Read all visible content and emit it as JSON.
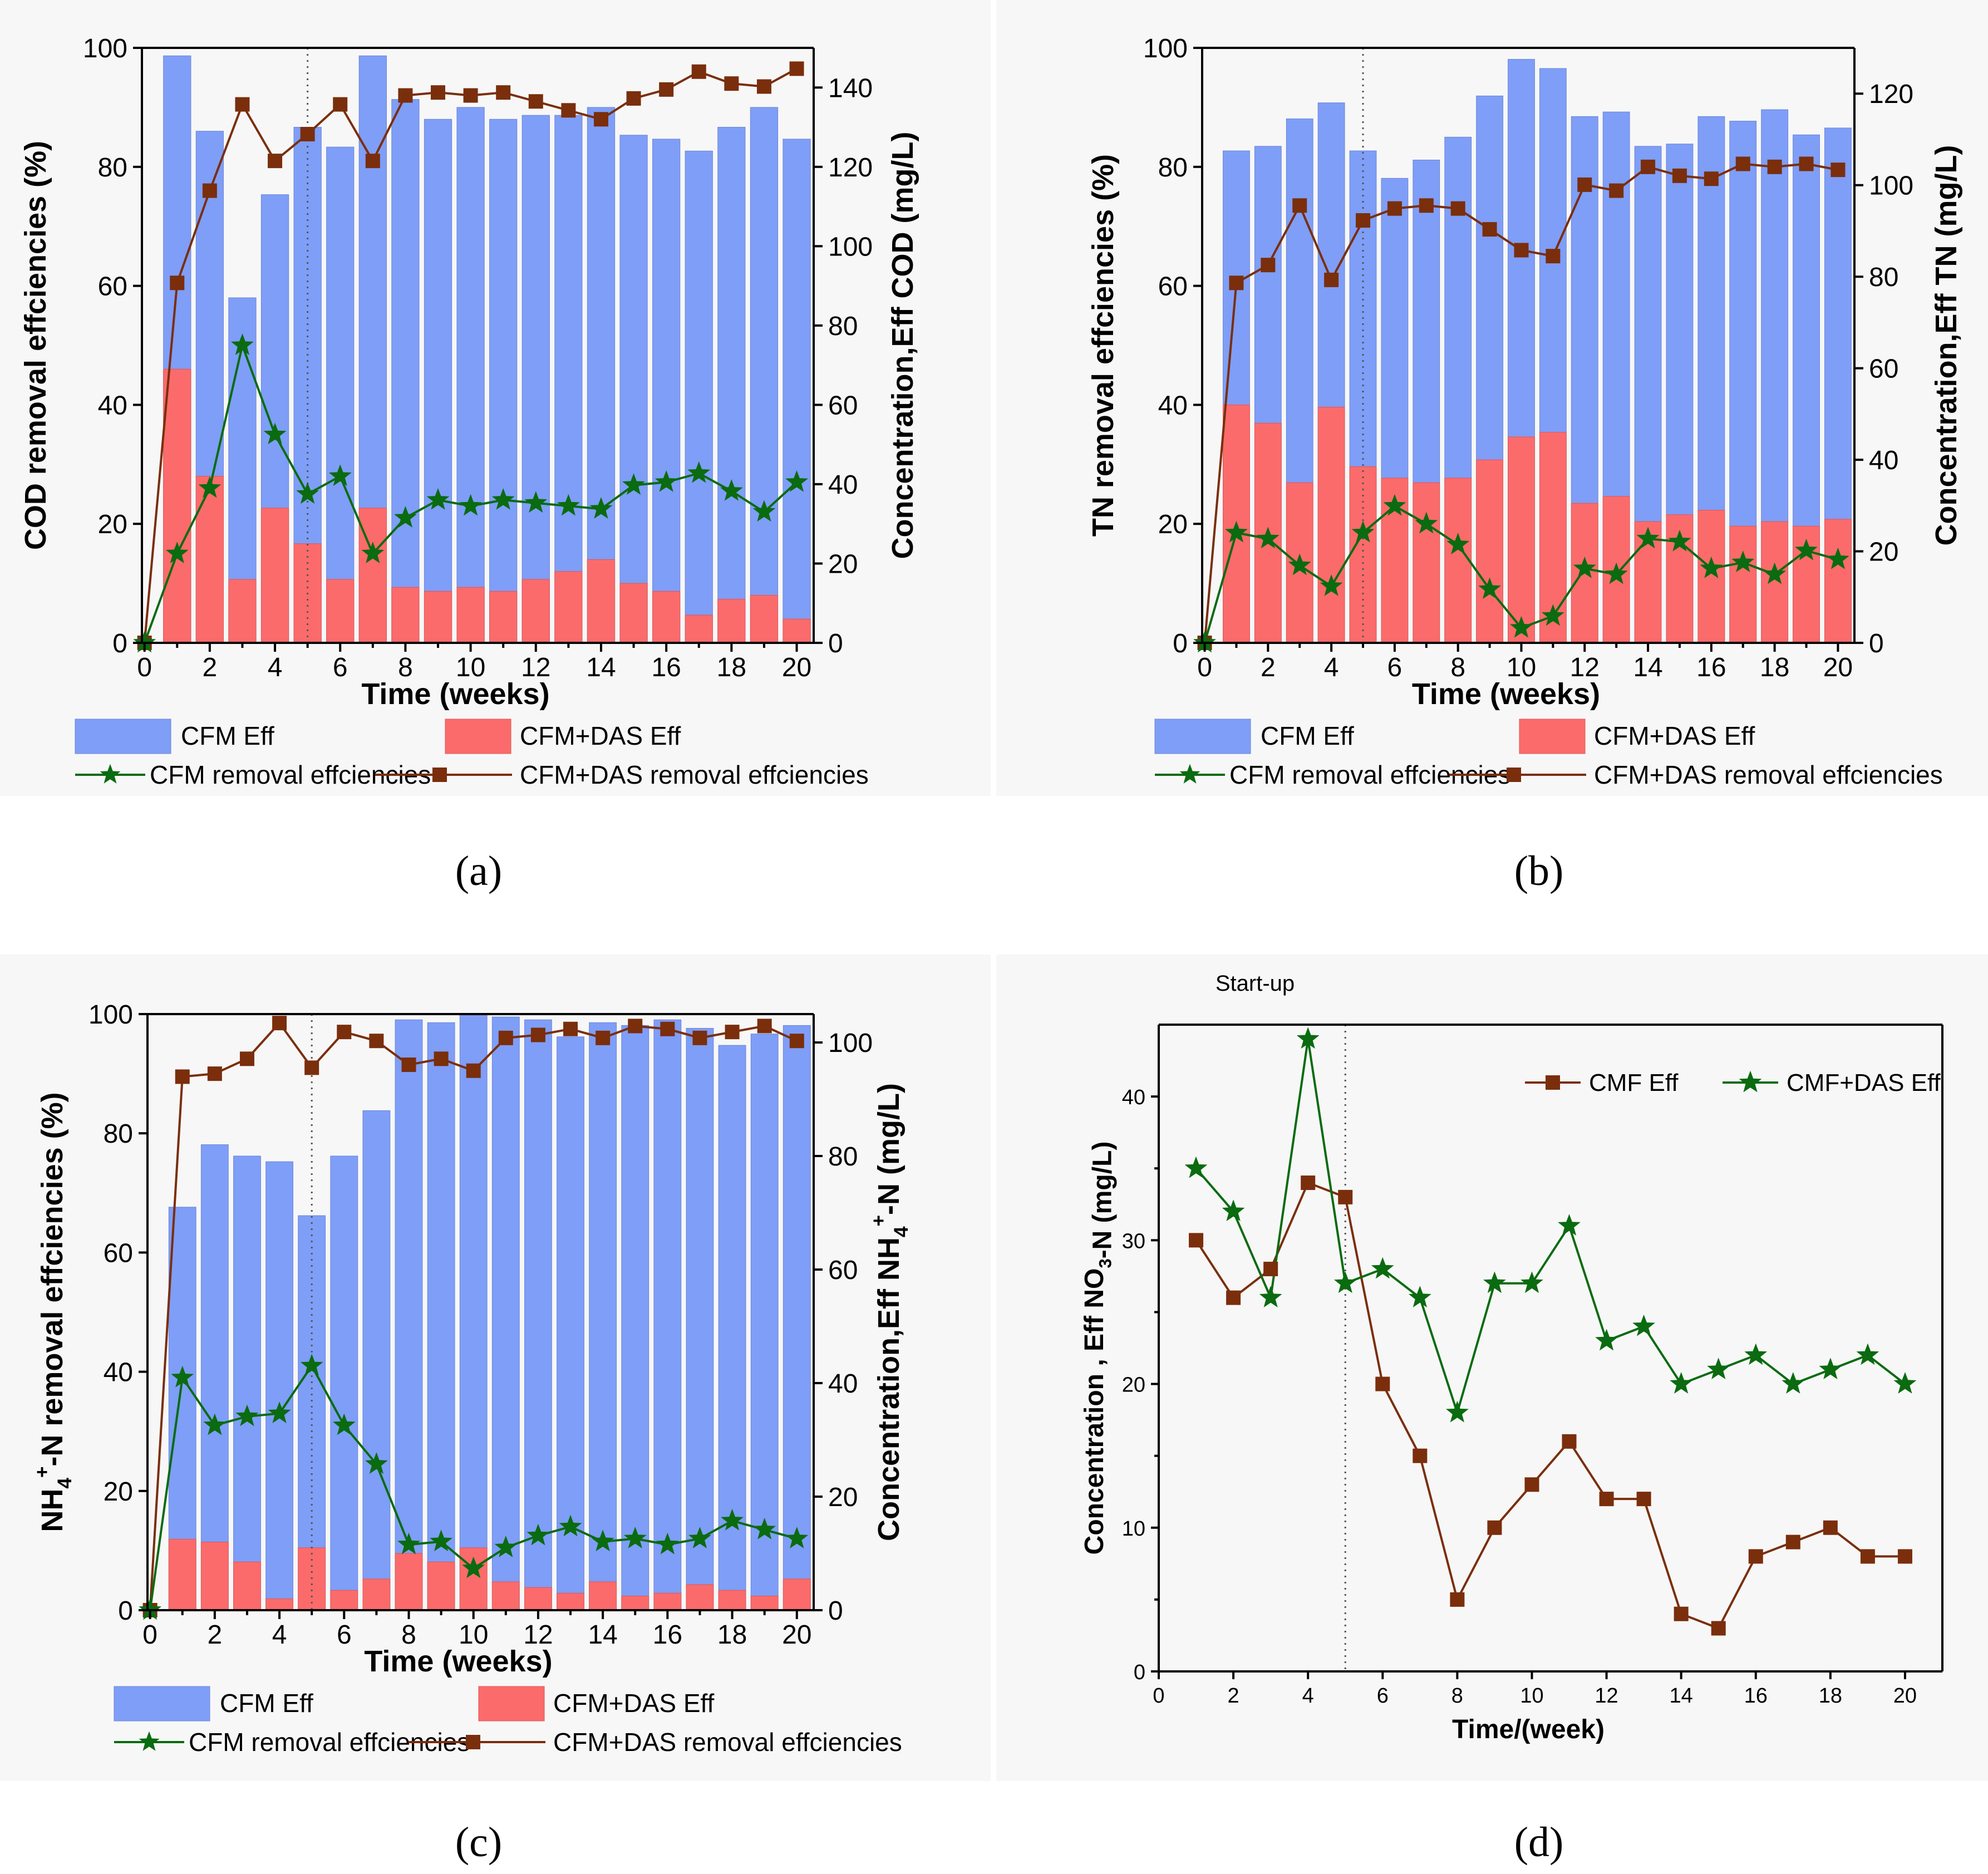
{
  "colors": {
    "cfm_bar": "#7f9ef7",
    "das_bar": "#fb6b6b",
    "cfm_line": "#0a6b10",
    "das_line": "#7a2e0c",
    "panel_bg": "#f7f7f7"
  },
  "chart_data": [
    {
      "id": "a",
      "type": "bar+line",
      "caption": "(a)",
      "weeks": [
        0,
        1,
        2,
        3,
        4,
        5,
        6,
        7,
        8,
        9,
        10,
        11,
        12,
        13,
        14,
        15,
        16,
        17,
        18,
        19,
        20
      ],
      "xlabel": "Time (weeks)",
      "ylabel_left": "COD removal effciencies (%)",
      "ylabel_right": "Concentration,Eff COD (mg/L)",
      "ylim_left": [
        0,
        100
      ],
      "ylim_right": [
        0,
        150
      ],
      "xticks": [
        0,
        2,
        4,
        6,
        8,
        10,
        12,
        14,
        16,
        18,
        20
      ],
      "yticks_left": [
        0,
        20,
        40,
        60,
        80,
        100
      ],
      "yticks_right": [
        0,
        20,
        40,
        60,
        80,
        100,
        120,
        140
      ],
      "vline_week": 5,
      "bars_cfm_eff": {
        "name": "CFM Eff",
        "x": [
          1,
          2,
          3,
          4,
          5,
          6,
          7,
          8,
          9,
          10,
          11,
          12,
          13,
          14,
          15,
          16,
          17,
          18,
          19,
          20
        ],
        "values": [
          148,
          129,
          87,
          113,
          130,
          125,
          148,
          137,
          132,
          135,
          132,
          133,
          133,
          135,
          128,
          127,
          124,
          130,
          135,
          127
        ]
      },
      "bars_das_eff": {
        "name": "CFM+DAS Eff",
        "x": [
          1,
          2,
          3,
          4,
          5,
          6,
          7,
          8,
          9,
          10,
          11,
          12,
          13,
          14,
          15,
          16,
          17,
          18,
          19,
          20
        ],
        "values": [
          69,
          42,
          16,
          34,
          25,
          16,
          34,
          14,
          13,
          14,
          13,
          16,
          18,
          21,
          15,
          13,
          7,
          11,
          12,
          6
        ]
      },
      "line_cfm": {
        "name": "CFM removal effciencies",
        "x": [
          0,
          1,
          2,
          3,
          4,
          5,
          6,
          7,
          8,
          9,
          10,
          11,
          12,
          13,
          14,
          15,
          16,
          17,
          18,
          19,
          20
        ],
        "values": [
          0,
          15,
          26,
          50,
          35,
          25,
          28,
          15,
          21,
          24,
          23,
          24,
          23.5,
          23,
          22.5,
          26.5,
          27,
          28.5,
          25.5,
          22,
          27
        ]
      },
      "line_das": {
        "name": "CFM+DAS removal effciencies",
        "x": [
          0,
          1,
          2,
          3,
          4,
          5,
          6,
          7,
          8,
          9,
          10,
          11,
          12,
          13,
          14,
          15,
          16,
          17,
          18,
          19,
          20
        ],
        "values": [
          0,
          60.5,
          76,
          90.5,
          81,
          85.5,
          90.5,
          81,
          92,
          92.5,
          92,
          92.5,
          91,
          89.5,
          88,
          91.5,
          93,
          96,
          94,
          93.5,
          96.5
        ]
      },
      "legend": [
        "CFM Eff",
        "CFM+DAS Eff",
        "CFM removal effciencies",
        "CFM+DAS removal effciencies"
      ]
    },
    {
      "id": "b",
      "type": "bar+line",
      "caption": "(b)",
      "weeks": [
        0,
        1,
        2,
        3,
        4,
        5,
        6,
        7,
        8,
        9,
        10,
        11,
        12,
        13,
        14,
        15,
        16,
        17,
        18,
        19,
        20
      ],
      "xlabel": "Time (weeks)",
      "ylabel_left": "TN removal effciencies (%)",
      "ylabel_right": "Concentration,Eff TN (mg/L)",
      "ylim_left": [
        0,
        100
      ],
      "ylim_right": [
        0,
        130
      ],
      "xticks": [
        0,
        2,
        4,
        6,
        8,
        10,
        12,
        14,
        16,
        18,
        20
      ],
      "yticks_left": [
        0,
        20,
        40,
        60,
        80,
        100
      ],
      "yticks_right": [
        0,
        20,
        40,
        60,
        80,
        100,
        120
      ],
      "vline_week": 5,
      "bars_cfm_eff": {
        "name": "CFM Eff",
        "x": [
          1,
          2,
          3,
          4,
          5,
          6,
          7,
          8,
          9,
          10,
          11,
          12,
          13,
          14,
          15,
          16,
          17,
          18,
          19,
          20
        ],
        "values": [
          107.5,
          108.5,
          114.5,
          118,
          107.5,
          101.5,
          105.5,
          110.5,
          119.5,
          127.5,
          125.5,
          115,
          116,
          108.5,
          109,
          115,
          114,
          116.5,
          111,
          112.5
        ]
      },
      "bars_das_eff": {
        "name": "CFM+DAS Eff",
        "x": [
          1,
          2,
          3,
          4,
          5,
          6,
          7,
          8,
          9,
          10,
          11,
          12,
          13,
          14,
          15,
          16,
          17,
          18,
          19,
          20
        ],
        "values": [
          52,
          48,
          35,
          51.5,
          38.5,
          36,
          35,
          36,
          40,
          45,
          46,
          30.5,
          32,
          26.5,
          28,
          29,
          25.5,
          26.5,
          25.5,
          27
        ]
      },
      "line_cfm": {
        "name": "CFM removal effciencies",
        "x": [
          0,
          1,
          2,
          3,
          4,
          5,
          6,
          7,
          8,
          9,
          10,
          11,
          12,
          13,
          14,
          15,
          16,
          17,
          18,
          19,
          20
        ],
        "values": [
          0,
          18.5,
          17.5,
          13,
          9.5,
          18.5,
          23,
          20,
          16.5,
          9,
          2.5,
          4.5,
          12.5,
          11.5,
          17.5,
          17,
          12.5,
          13.5,
          11.5,
          15.5,
          14
        ]
      },
      "line_das": {
        "name": "CFM+DAS removal effciencies",
        "x": [
          0,
          1,
          2,
          3,
          4,
          5,
          6,
          7,
          8,
          9,
          10,
          11,
          12,
          13,
          14,
          15,
          16,
          17,
          18,
          19,
          20
        ],
        "values": [
          0,
          60.5,
          63.5,
          73.5,
          61,
          71,
          73,
          73.5,
          73,
          69.5,
          66,
          65,
          77,
          76,
          80,
          78.5,
          78,
          80.5,
          80,
          80.5,
          79.5
        ]
      },
      "legend": [
        "CFM Eff",
        "CFM+DAS Eff",
        "CFM removal effciencies",
        "CFM+DAS removal effciencies"
      ]
    },
    {
      "id": "c",
      "type": "bar+line",
      "caption": "(c)",
      "weeks": [
        0,
        1,
        2,
        3,
        4,
        5,
        6,
        7,
        8,
        9,
        10,
        11,
        12,
        13,
        14,
        15,
        16,
        17,
        18,
        19,
        20
      ],
      "xlabel": "Time (weeks)",
      "ylabel_left": "NH4+-N removal effciencies (%)",
      "ylabel_left_parts": [
        "NH",
        "4",
        "+",
        "-N removal effciencies (%)"
      ],
      "ylabel_right": "Concentration,Eff NH4+-N (mg/L)",
      "ylabel_right_parts": [
        "Concentration,Eff NH",
        "4",
        "+",
        "-N (mg/L)"
      ],
      "ylim_left": [
        0,
        100
      ],
      "ylim_right": [
        0,
        105
      ],
      "xticks": [
        0,
        2,
        4,
        6,
        8,
        10,
        12,
        14,
        16,
        18,
        20
      ],
      "yticks_left": [
        0,
        20,
        40,
        60,
        80,
        100
      ],
      "yticks_right": [
        0,
        20,
        40,
        60,
        80,
        100
      ],
      "vline_week": 5,
      "bars_cfm_eff": {
        "name": "CFM Eff",
        "x": [
          1,
          2,
          3,
          4,
          5,
          6,
          7,
          8,
          9,
          10,
          11,
          12,
          13,
          14,
          15,
          16,
          17,
          18,
          19,
          20
        ],
        "values": [
          71,
          82,
          80,
          79,
          69.5,
          80,
          88,
          104,
          103.5,
          105,
          104.5,
          104,
          101,
          103.5,
          103,
          104,
          102.5,
          99.5,
          101.5,
          103
        ]
      },
      "bars_das_eff": {
        "name": "CFM+DAS Eff",
        "x": [
          1,
          2,
          3,
          4,
          5,
          6,
          7,
          8,
          9,
          10,
          11,
          12,
          13,
          14,
          15,
          16,
          17,
          18,
          19,
          20
        ],
        "values": [
          12.5,
          12,
          8.5,
          2,
          11,
          3.5,
          5.5,
          10,
          8.5,
          11,
          5,
          4,
          3,
          5,
          2.5,
          3,
          4.5,
          3.5,
          2.5,
          5.5
        ]
      },
      "line_cfm": {
        "name": "CFM removal effciencies",
        "x": [
          0,
          1,
          2,
          3,
          4,
          5,
          6,
          7,
          8,
          9,
          10,
          11,
          12,
          13,
          14,
          15,
          16,
          17,
          18,
          19,
          20
        ],
        "values": [
          0,
          39,
          31,
          32.5,
          33,
          41,
          31,
          24.5,
          11,
          11.5,
          7,
          10.5,
          12.5,
          14,
          11.5,
          12,
          11,
          12,
          15,
          13.5,
          12
        ]
      },
      "line_das": {
        "name": "CFM+DAS removal effciencies",
        "x": [
          0,
          1,
          2,
          3,
          4,
          5,
          6,
          7,
          8,
          9,
          10,
          11,
          12,
          13,
          14,
          15,
          16,
          17,
          18,
          19,
          20
        ],
        "values": [
          0,
          89.5,
          90,
          92.5,
          98.5,
          91,
          97,
          95.5,
          91.5,
          92.5,
          90.5,
          96,
          96.5,
          97.5,
          96,
          98,
          97.5,
          96,
          97,
          98,
          95.5
        ]
      },
      "legend": [
        "CFM Eff",
        "CFM+DAS Eff",
        "CFM removal effciencies",
        "CFM+DAS removal effciencies"
      ]
    },
    {
      "id": "d",
      "type": "line",
      "caption": "(d)",
      "xlabel": "Time/(week)",
      "ylabel": "Concentration , Eff NO3-N (mg/L)",
      "ylabel_parts": [
        "Concentration , Eff  NO",
        "3",
        "-N (mg/L)"
      ],
      "annotation": "Start-up",
      "ylim": [
        0,
        45
      ],
      "xlim": [
        0,
        21
      ],
      "xticks": [
        0,
        2,
        4,
        6,
        8,
        10,
        12,
        14,
        16,
        18,
        20
      ],
      "yticks": [
        0,
        10,
        20,
        30,
        40
      ],
      "vline_week": 5,
      "series": [
        {
          "name": "CMF Eff",
          "x": [
            1,
            2,
            3,
            4,
            5,
            6,
            7,
            8,
            9,
            10,
            11,
            12,
            13,
            14,
            15,
            16,
            17,
            18,
            19,
            20
          ],
          "values": [
            30,
            26,
            28,
            34,
            33,
            20,
            15,
            5,
            10,
            13,
            16,
            12,
            12,
            4,
            3,
            8,
            9,
            10,
            8,
            8
          ]
        },
        {
          "name": "CMF+DAS Eff",
          "x": [
            1,
            2,
            3,
            4,
            5,
            6,
            7,
            8,
            9,
            10,
            11,
            12,
            13,
            14,
            15,
            16,
            17,
            18,
            19,
            20
          ],
          "values": [
            35,
            32,
            26,
            44,
            27,
            28,
            26,
            18,
            27,
            27,
            31,
            23,
            24,
            20,
            21,
            22,
            20,
            21,
            22,
            20
          ]
        }
      ],
      "legend": [
        "CMF Eff",
        "CMF+DAS Eff"
      ]
    }
  ]
}
